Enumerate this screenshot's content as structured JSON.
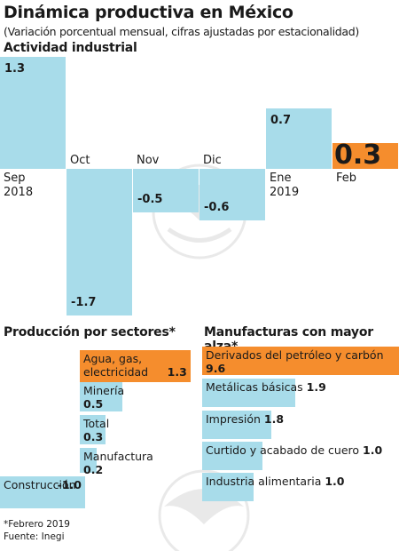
{
  "title": "Dinámica productiva en México",
  "subtitle": "(Variación porcentual mensual, cifras ajustadas por estacionalidad)",
  "colors": {
    "bar": "#a8dcea",
    "highlight": "#f58d2d"
  },
  "footnote": "*Febrero 2019",
  "source": "Fuente: Inegi",
  "chart_data": [
    {
      "type": "bar",
      "title": "Actividad industrial",
      "categories": [
        "Sep\n2018",
        "Oct",
        "Nov",
        "Dic",
        "Ene\n2019",
        "Feb"
      ],
      "values": [
        1.3,
        -1.7,
        -0.5,
        -0.6,
        0.7,
        0.3
      ],
      "value_labels": [
        "1.3",
        "-1.7",
        "-0.5",
        "-0.6",
        "0.7",
        "0.3"
      ],
      "highlight_index": 5,
      "ylim": [
        -1.7,
        1.3
      ]
    },
    {
      "type": "bar",
      "orientation": "horizontal",
      "title": "Producción por sectores*",
      "categories": [
        "Agua, gas, electricidad",
        "Minería",
        "Total",
        "Manufactura",
        "Construcción"
      ],
      "values": [
        1.3,
        0.5,
        0.3,
        0.2,
        -1.0
      ],
      "value_labels": [
        "1.3",
        "0.5",
        "0.3",
        "0.2",
        "-1.0"
      ],
      "highlight_index": 0
    },
    {
      "type": "bar",
      "orientation": "horizontal",
      "title": "Manufacturas con mayor alza*",
      "categories": [
        "Derivados del petróleo y carbón",
        "Metálicas básicas",
        "Impresión",
        "Curtido y acabado de cuero",
        "Industria alimentaria"
      ],
      "values": [
        9.6,
        1.9,
        1.8,
        1.0,
        1.0
      ],
      "value_labels": [
        "9.6",
        "1.9",
        "1.8",
        "1.0",
        "1.0"
      ],
      "highlight_index": 0
    }
  ]
}
